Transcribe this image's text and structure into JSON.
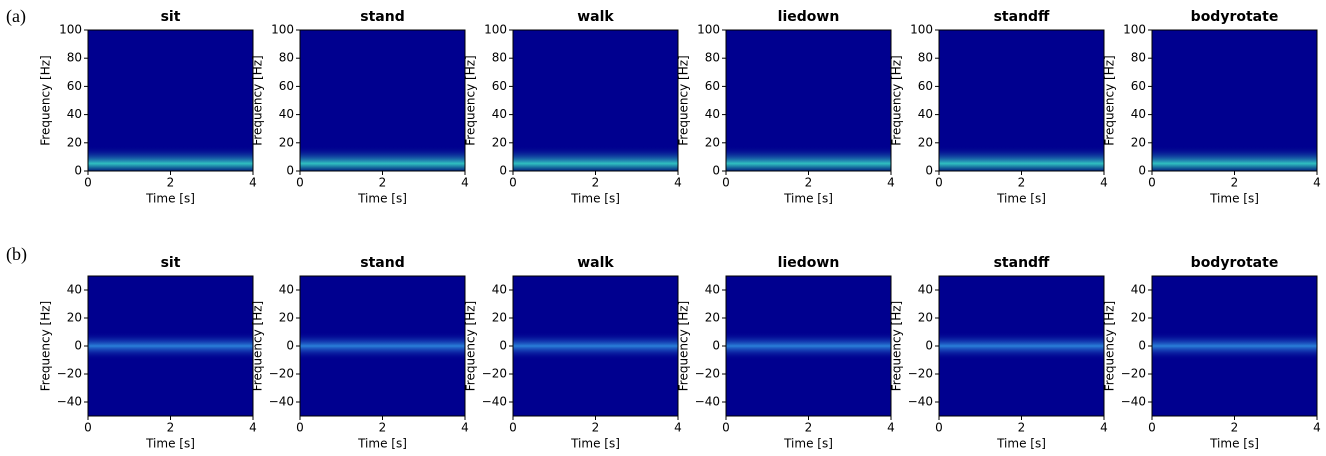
{
  "panel_labels": [
    "(a)",
    "(b)"
  ],
  "chart_data": [
    {
      "type": "heatmap",
      "title": "sit",
      "xlabel": "Time [s]",
      "ylabel": "Frequency [Hz]",
      "xlim": [
        0,
        4
      ],
      "xticks": [
        0,
        2,
        4
      ],
      "ylim": [
        0,
        100
      ],
      "yticks": [
        0,
        20,
        40,
        60,
        80,
        100
      ]
    },
    {
      "type": "heatmap",
      "title": "stand",
      "xlabel": "Time [s]",
      "ylabel": "Frequency [Hz]",
      "xlim": [
        0,
        4
      ],
      "xticks": [
        0,
        2,
        4
      ],
      "ylim": [
        0,
        100
      ],
      "yticks": [
        0,
        20,
        40,
        60,
        80,
        100
      ]
    },
    {
      "type": "heatmap",
      "title": "walk",
      "xlabel": "Time [s]",
      "ylabel": "Frequency [Hz]",
      "xlim": [
        0,
        4
      ],
      "xticks": [
        0,
        2,
        4
      ],
      "ylim": [
        0,
        100
      ],
      "yticks": [
        0,
        20,
        40,
        60,
        80,
        100
      ]
    },
    {
      "type": "heatmap",
      "title": "liedown",
      "xlabel": "Time [s]",
      "ylabel": "Frequency [Hz]",
      "xlim": [
        0,
        4
      ],
      "xticks": [
        0,
        2,
        4
      ],
      "ylim": [
        0,
        100
      ],
      "yticks": [
        0,
        20,
        40,
        60,
        80,
        100
      ]
    },
    {
      "type": "heatmap",
      "title": "standff",
      "xlabel": "Time [s]",
      "ylabel": "Frequency [Hz]",
      "xlim": [
        0,
        4
      ],
      "xticks": [
        0,
        2,
        4
      ],
      "ylim": [
        0,
        100
      ],
      "yticks": [
        0,
        20,
        40,
        60,
        80,
        100
      ]
    },
    {
      "type": "heatmap",
      "title": "bodyrotate",
      "xlabel": "Time [s]",
      "ylabel": "Frequency [Hz]",
      "xlim": [
        0,
        4
      ],
      "xticks": [
        0,
        2,
        4
      ],
      "ylim": [
        0,
        100
      ],
      "yticks": [
        0,
        20,
        40,
        60,
        80,
        100
      ]
    },
    {
      "type": "heatmap",
      "title": "sit",
      "xlabel": "Time [s]",
      "ylabel": "Frequency [Hz]",
      "xlim": [
        0,
        4
      ],
      "xticks": [
        0,
        2,
        4
      ],
      "ylim": [
        -50,
        50
      ],
      "yticks": [
        {
          "value": -40,
          "label": "−40"
        },
        {
          "value": -20,
          "label": "−20"
        },
        0,
        20,
        40
      ]
    },
    {
      "type": "heatmap",
      "title": "stand",
      "xlabel": "Time [s]",
      "ylabel": "Frequency [Hz]",
      "xlim": [
        0,
        4
      ],
      "xticks": [
        0,
        2,
        4
      ],
      "ylim": [
        -50,
        50
      ],
      "yticks": [
        {
          "value": -40,
          "label": "−40"
        },
        {
          "value": -20,
          "label": "−20"
        },
        0,
        20,
        40
      ]
    },
    {
      "type": "heatmap",
      "title": "walk",
      "xlabel": "Time [s]",
      "ylabel": "Frequency [Hz]",
      "xlim": [
        0,
        4
      ],
      "xticks": [
        0,
        2,
        4
      ],
      "ylim": [
        -50,
        50
      ],
      "yticks": [
        {
          "value": -40,
          "label": "−40"
        },
        {
          "value": -20,
          "label": "−20"
        },
        0,
        20,
        40
      ]
    },
    {
      "type": "heatmap",
      "title": "liedown",
      "xlabel": "Time [s]",
      "ylabel": "Frequency [Hz]",
      "xlim": [
        0,
        4
      ],
      "xticks": [
        0,
        2,
        4
      ],
      "ylim": [
        -50,
        50
      ],
      "yticks": [
        {
          "value": -40,
          "label": "−40"
        },
        {
          "value": -20,
          "label": "−20"
        },
        0,
        20,
        40
      ]
    },
    {
      "type": "heatmap",
      "title": "standff",
      "xlabel": "Time [s]",
      "ylabel": "Frequency [Hz]",
      "xlim": [
        0,
        4
      ],
      "xticks": [
        0,
        2,
        4
      ],
      "ylim": [
        -50,
        50
      ],
      "yticks": [
        {
          "value": -40,
          "label": "−40"
        },
        {
          "value": -20,
          "label": "−20"
        },
        0,
        20,
        40
      ]
    },
    {
      "type": "heatmap",
      "title": "bodyrotate",
      "xlabel": "Time [s]",
      "ylabel": "Frequency [Hz]",
      "xlim": [
        0,
        4
      ],
      "xticks": [
        0,
        2,
        4
      ],
      "ylim": [
        -50,
        50
      ],
      "yticks": [
        {
          "value": -40,
          "label": "−40"
        },
        {
          "value": -20,
          "label": "−20"
        },
        0,
        20,
        40
      ]
    }
  ]
}
